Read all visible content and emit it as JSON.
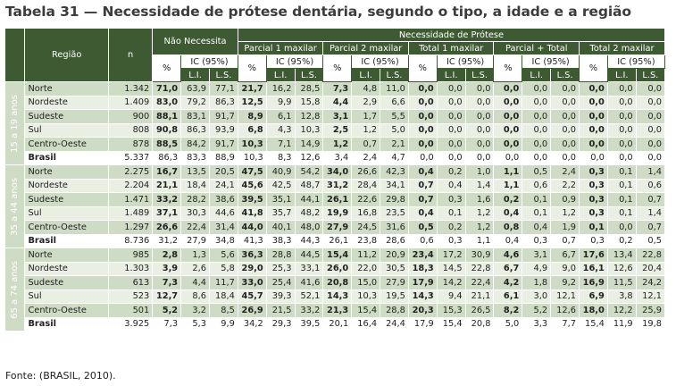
{
  "title": "Tabela 31 — Necessidade de prótese dentária, segundo o tipo, a idade e a região",
  "source": "Fonte: (BRASIL, 2010).",
  "header": {
    "regiao": "Região",
    "n": "n",
    "nao_necessita": "Não Necessita",
    "necessidade": "Necessidade de Prótese",
    "groups": [
      "Parcial 1 maxilar",
      "Parcial 2 maxilar",
      "Total 1 maxilar",
      "Parcial + Total",
      "Total 2 maxilar"
    ],
    "pct": "%",
    "ic": "IC (95%)",
    "li": "L.I.",
    "ls": "L.S."
  },
  "age_groups": [
    {
      "label": "15 a 19 anos",
      "rows": [
        {
          "r": "Norte",
          "n": "1.342",
          "v": [
            "71,0",
            "63,9",
            "77,1",
            "21,7",
            "16,2",
            "28,5",
            "7,3",
            "4,8",
            "11,0",
            "0,0",
            "0,0",
            "0,0",
            "0,0",
            "0,0",
            "0,0",
            "0,0",
            "0,0",
            "0,0"
          ]
        },
        {
          "r": "Nordeste",
          "n": "1.409",
          "v": [
            "83,0",
            "79,2",
            "86,3",
            "12,5",
            "9,9",
            "15,8",
            "4,4",
            "2,9",
            "6,6",
            "0,0",
            "0,0",
            "0,0",
            "0,0",
            "0,0",
            "0,0",
            "0,0",
            "0,0",
            "0,0"
          ]
        },
        {
          "r": "Sudeste",
          "n": "900",
          "v": [
            "88,1",
            "83,1",
            "91,7",
            "8,9",
            "6,1",
            "12,8",
            "3,1",
            "1,7",
            "5,5",
            "0,0",
            "0,0",
            "0,0",
            "0,0",
            "0,0",
            "0,0",
            "0,0",
            "0,0",
            "0,0"
          ]
        },
        {
          "r": "Sul",
          "n": "808",
          "v": [
            "90,8",
            "86,3",
            "93,9",
            "6,8",
            "4,3",
            "10,3",
            "2,5",
            "1,2",
            "5,0",
            "0,0",
            "0,0",
            "0,0",
            "0,0",
            "0,0",
            "0,0",
            "0,0",
            "0,0",
            "0,0"
          ]
        },
        {
          "r": "Centro-Oeste",
          "n": "878",
          "v": [
            "88,5",
            "84,2",
            "91,7",
            "10,3",
            "7,1",
            "14,9",
            "1,2",
            "0,7",
            "2,1",
            "0,0",
            "0,0",
            "0,0",
            "0,0",
            "0,0",
            "0,0",
            "0,0",
            "0,0",
            "0,0"
          ]
        },
        {
          "r": "Brasil",
          "n": "5.337",
          "v": [
            "86,3",
            "83,3",
            "88,9",
            "10,3",
            "8,3",
            "12,6",
            "3,4",
            "2,4",
            "4,7",
            "0,0",
            "0,0",
            "0,0",
            "0,0",
            "0,0",
            "0,0",
            "0,0",
            "0,0",
            "0,0"
          ]
        }
      ]
    },
    {
      "label": "35 a 44 anos",
      "rows": [
        {
          "r": "Norte",
          "n": "2.275",
          "v": [
            "16,7",
            "13,5",
            "20,5",
            "47,5",
            "40,9",
            "54,2",
            "34,0",
            "26,6",
            "42,3",
            "0,4",
            "0,2",
            "1,0",
            "1,1",
            "0,5",
            "2,4",
            "0,3",
            "0,1",
            "1,4"
          ]
        },
        {
          "r": "Nordeste",
          "n": "2.204",
          "v": [
            "21,1",
            "18,4",
            "24,1",
            "45,6",
            "42,5",
            "48,7",
            "31,2",
            "28,4",
            "34,1",
            "0,7",
            "0,4",
            "1,4",
            "1,1",
            "0,6",
            "2,2",
            "0,3",
            "0,1",
            "0,6"
          ]
        },
        {
          "r": "Sudeste",
          "n": "1.471",
          "v": [
            "33,2",
            "28,2",
            "38,6",
            "39,5",
            "35,1",
            "44,1",
            "26,1",
            "22,6",
            "29,8",
            "0,7",
            "0,3",
            "1,6",
            "0,2",
            "0,1",
            "0,9",
            "0,3",
            "0,1",
            "0,7"
          ]
        },
        {
          "r": "Sul",
          "n": "1.489",
          "v": [
            "37,1",
            "30,3",
            "44,6",
            "41,8",
            "35,7",
            "48,2",
            "19,9",
            "16,8",
            "23,5",
            "0,4",
            "0,1",
            "1,2",
            "0,4",
            "0,1",
            "1,2",
            "0,3",
            "0,1",
            "1,4"
          ]
        },
        {
          "r": "Centro-Oeste",
          "n": "1.297",
          "v": [
            "26,6",
            "22,4",
            "31,4",
            "44,0",
            "40,1",
            "48,0",
            "27,9",
            "24,5",
            "31,6",
            "0,5",
            "0,2",
            "1,2",
            "0,8",
            "0,4",
            "1,9",
            "0,1",
            "0,0",
            "0,7"
          ]
        },
        {
          "r": "Brasil",
          "n": "8.736",
          "v": [
            "31,2",
            "27,9",
            "34,8",
            "41,3",
            "38,3",
            "44,3",
            "26,1",
            "23,8",
            "28,6",
            "0,6",
            "0,3",
            "1,1",
            "0,4",
            "0,3",
            "0,7",
            "0,3",
            "0,2",
            "0,5"
          ]
        }
      ]
    },
    {
      "label": "65 a 74 anos",
      "rows": [
        {
          "r": "Norte",
          "n": "985",
          "v": [
            "2,8",
            "1,3",
            "5,6",
            "36,3",
            "28,8",
            "44,5",
            "15,4",
            "11,2",
            "20,9",
            "23,4",
            "17,2",
            "30,9",
            "4,6",
            "3,1",
            "6,7",
            "17,6",
            "13,4",
            "22,8"
          ]
        },
        {
          "r": "Nordeste",
          "n": "1.303",
          "v": [
            "3,9",
            "2,6",
            "5,8",
            "29,0",
            "25,3",
            "33,1",
            "26,0",
            "22,0",
            "30,5",
            "18,3",
            "14,5",
            "22,8",
            "6,7",
            "4,9",
            "9,0",
            "16,1",
            "12,6",
            "20,4"
          ]
        },
        {
          "r": "Sudeste",
          "n": "613",
          "v": [
            "7,3",
            "4,4",
            "11,7",
            "33,0",
            "25,4",
            "41,6",
            "20,8",
            "15,0",
            "27,9",
            "17,9",
            "14,2",
            "22,4",
            "4,2",
            "1,8",
            "9,2",
            "16,9",
            "11,5",
            "24,2"
          ]
        },
        {
          "r": "Sul",
          "n": "523",
          "v": [
            "12,7",
            "8,6",
            "18,4",
            "45,7",
            "39,3",
            "52,1",
            "14,3",
            "10,3",
            "19,5",
            "14,3",
            "9,4",
            "21,1",
            "6,1",
            "3,0",
            "12,1",
            "6,9",
            "3,8",
            "12,1"
          ]
        },
        {
          "r": "Centro-Oeste",
          "n": "501",
          "v": [
            "5,2",
            "3,2",
            "8,5",
            "26,9",
            "21,5",
            "33,2",
            "21,3",
            "15,4",
            "28,8",
            "20,3",
            "15,3",
            "26,5",
            "8,2",
            "5,2",
            "12,6",
            "18,0",
            "12,2",
            "25,9"
          ]
        },
        {
          "r": "Brasil",
          "n": "3.925",
          "v": [
            "7,3",
            "5,3",
            "9,9",
            "34,2",
            "29,3",
            "39,5",
            "20,1",
            "16,4",
            "24,4",
            "17,9",
            "15,4",
            "20,8",
            "5,0",
            "3,3",
            "7,7",
            "15,4",
            "11,9",
            "19,8"
          ]
        }
      ]
    }
  ]
}
